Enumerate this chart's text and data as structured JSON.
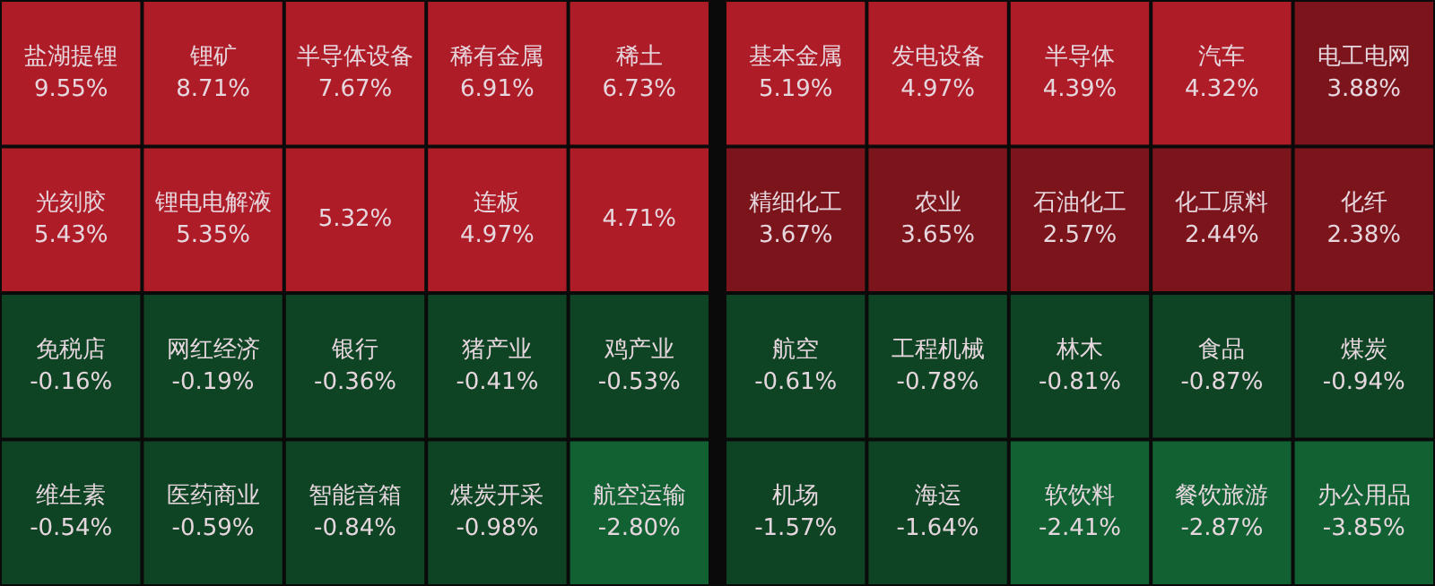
{
  "chart_data": [
    {
      "type": "other",
      "categories": [
        "盐湖提锂",
        "锂矿",
        "半导体设备",
        "稀有金属",
        "稀土",
        "光刻胶",
        "锂电电解液",
        null,
        "连板",
        null,
        "免税店",
        "网红经济",
        "银行",
        "猪产业",
        "鸡产业",
        "维生素",
        "医药商业",
        "智能音箱",
        "煤炭开采",
        "航空运输"
      ],
      "values": [
        9.55,
        8.71,
        7.67,
        6.91,
        6.73,
        5.43,
        5.35,
        5.32,
        4.97,
        4.71,
        -0.16,
        -0.19,
        -0.36,
        -0.41,
        -0.53,
        -0.54,
        -0.59,
        -0.84,
        -0.98,
        -2.8
      ],
      "value_labels": [
        "9.55%",
        "8.71%",
        "7.67%",
        "6.91%",
        "6.73%",
        "5.43%",
        "5.35%",
        "5.32%",
        "4.97%",
        "4.71%",
        "-0.16%",
        "-0.19%",
        "-0.36%",
        "-0.41%",
        "-0.53%",
        "-0.54%",
        "-0.59%",
        "-0.84%",
        "-0.98%",
        "-2.80%"
      ]
    },
    {
      "type": "other",
      "categories": [
        "基本金属",
        "发电设备",
        "半导体",
        "汽车",
        "电工电网",
        "精细化工",
        "农业",
        "石油化工",
        "化工原料",
        "化纤",
        "航空",
        "工程机械",
        "林木",
        "食品",
        "煤炭",
        "机场",
        "海运",
        "软饮料",
        "餐饮旅游",
        "办公用品"
      ],
      "values": [
        5.19,
        4.97,
        4.39,
        4.32,
        3.88,
        3.67,
        3.65,
        2.57,
        2.44,
        2.38,
        -0.61,
        -0.78,
        -0.81,
        -0.87,
        -0.94,
        -1.57,
        -1.64,
        -2.41,
        -2.87,
        -3.85
      ],
      "value_labels": [
        "5.19%",
        "4.97%",
        "4.39%",
        "4.32%",
        "3.88%",
        "3.67%",
        "3.65%",
        "2.57%",
        "2.44%",
        "2.38%",
        "-0.61%",
        "-0.78%",
        "-0.81%",
        "-0.87%",
        "-0.94%",
        "-1.57%",
        "-1.64%",
        "-2.41%",
        "-2.87%",
        "-3.85%"
      ]
    }
  ]
}
